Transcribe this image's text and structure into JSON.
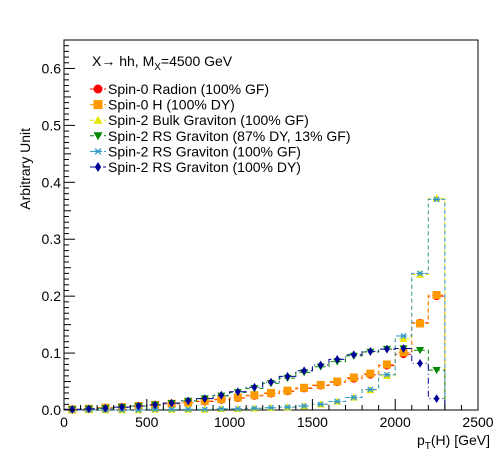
{
  "chart_data": {
    "type": "line",
    "annotation": {
      "prefix": "X",
      "arrow": "→",
      "middle": " hh, M",
      "subscript": "X",
      "suffix": "=4500 GeV"
    },
    "xlabel": {
      "main": "p",
      "subscript": "T",
      "rest": "(H) [GeV]"
    },
    "ylabel": "Arbitrary Unit",
    "xlim": [
      0,
      2500
    ],
    "ylim": [
      0,
      0.65
    ],
    "x_ticks": [
      0,
      500,
      1000,
      1500,
      2000,
      2500
    ],
    "x_tick_labels": [
      "0",
      "500",
      "1000",
      "1500",
      "2000",
      "2500"
    ],
    "y_ticks": [
      0,
      0.1,
      0.2,
      0.3,
      0.4,
      0.5,
      0.6
    ],
    "y_tick_labels": [
      "0.0",
      "0.1",
      "0.2",
      "0.3",
      "0.4",
      "0.5",
      "0.6"
    ],
    "bin_edges": [
      0,
      100,
      200,
      300,
      400,
      500,
      600,
      700,
      800,
      900,
      1000,
      1100,
      1200,
      1300,
      1400,
      1500,
      1600,
      1700,
      1800,
      1900,
      2000,
      2100,
      2200,
      2300
    ],
    "grid": false,
    "legend_position": "top-left",
    "series": [
      {
        "name": "Spin-0 Radion (100% GF)",
        "color": "#ff0000",
        "marker": "circle",
        "line_style": "dash",
        "values": [
          0.001,
          0.002,
          0.004,
          0.005,
          0.007,
          0.009,
          0.011,
          0.013,
          0.015,
          0.018,
          0.021,
          0.025,
          0.029,
          0.033,
          0.038,
          0.043,
          0.049,
          0.055,
          0.062,
          0.078,
          0.098,
          0.153,
          0.2
        ]
      },
      {
        "name": "Spin-0 H (100% DY)",
        "color": "#ff9900",
        "marker": "square",
        "line_style": "dash",
        "values": [
          0.001,
          0.002,
          0.004,
          0.005,
          0.007,
          0.009,
          0.011,
          0.013,
          0.016,
          0.019,
          0.022,
          0.026,
          0.03,
          0.034,
          0.039,
          0.044,
          0.05,
          0.057,
          0.064,
          0.08,
          0.101,
          0.152,
          0.202
        ]
      },
      {
        "name": "Spin-2 Bulk Graviton (100% GF)",
        "color": "#e6e600",
        "marker": "triangle-up",
        "line_style": "dash",
        "values": [
          0.0,
          0.0,
          0.0,
          0.0,
          0.0,
          0.001,
          0.001,
          0.001,
          0.001,
          0.002,
          0.002,
          0.003,
          0.004,
          0.005,
          0.007,
          0.01,
          0.015,
          0.022,
          0.035,
          0.06,
          0.125,
          0.238,
          0.372
        ]
      },
      {
        "name": "Spin-2 RS Graviton (87% DY,  13% GF)",
        "color": "#008800",
        "marker": "triangle-down",
        "line_style": "dash",
        "values": [
          0.001,
          0.002,
          0.003,
          0.005,
          0.007,
          0.009,
          0.012,
          0.016,
          0.02,
          0.025,
          0.031,
          0.038,
          0.047,
          0.056,
          0.066,
          0.076,
          0.085,
          0.095,
          0.102,
          0.107,
          0.108,
          0.105,
          0.07
        ]
      },
      {
        "name": "Spin-2 RS Graviton (100% GF)",
        "color": "#3399cc",
        "marker": "star",
        "line_style": "dash",
        "values": [
          0.0,
          0.0,
          0.0,
          0.0,
          0.0,
          0.001,
          0.001,
          0.001,
          0.001,
          0.002,
          0.002,
          0.003,
          0.004,
          0.005,
          0.007,
          0.01,
          0.015,
          0.022,
          0.036,
          0.062,
          0.13,
          0.24,
          0.37
        ]
      },
      {
        "name": "Spin-2 RS Graviton (100% DY)",
        "color": "#000099",
        "marker": "diamond",
        "line_style": "dashdot",
        "values": [
          0.001,
          0.002,
          0.003,
          0.005,
          0.007,
          0.009,
          0.012,
          0.016,
          0.02,
          0.026,
          0.032,
          0.04,
          0.049,
          0.059,
          0.069,
          0.079,
          0.089,
          0.097,
          0.103,
          0.107,
          0.108,
          0.082,
          0.02
        ]
      }
    ]
  }
}
